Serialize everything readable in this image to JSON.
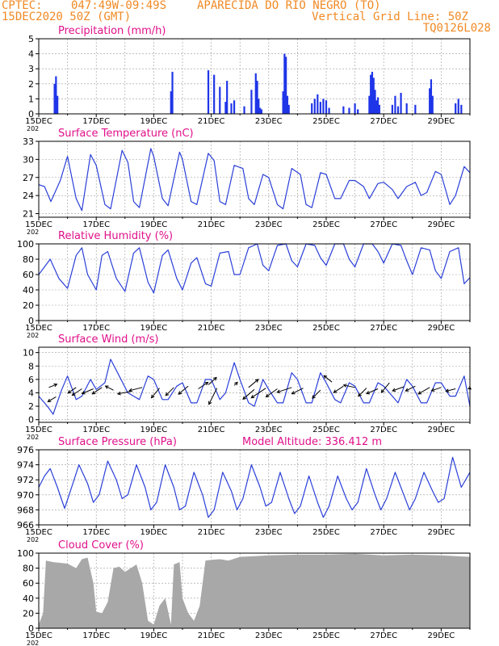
{
  "header": {
    "source": "CPTEC:",
    "coords": "047:49W-09:49S",
    "station": "APARECIDA DO RIO NEGRO (TO)",
    "datetime": "15DEC2020 50Z (GMT)",
    "grid_note": "Vertical Grid Line: 50Z",
    "model_code": "TQ0126L028"
  },
  "x_axis": {
    "start_day": 15,
    "end_day": 30,
    "ticks": [
      15,
      17,
      19,
      21,
      23,
      25,
      27,
      29
    ],
    "tick_labels": [
      "15DEC",
      "17DEC",
      "19DEC",
      "21DEC",
      "23DEC",
      "25DEC",
      "27DEC",
      "29DEC"
    ],
    "year_stub": "202"
  },
  "colors": {
    "title": "#e0108a",
    "line": "#2a3fd8",
    "bar": "#1f35e8",
    "cloud": "#a8a8a8",
    "header": "#f08a24"
  },
  "chart_data": [
    {
      "type": "bar",
      "title": "Precipitation (mm/h)",
      "ylim": [
        0,
        5
      ],
      "yticks": [
        0,
        1,
        2,
        3,
        4,
        5
      ],
      "x": [
        15.55,
        15.6,
        15.65,
        19.6,
        19.65,
        20.9,
        21.1,
        21.3,
        21.5,
        21.55,
        21.7,
        21.8,
        22.15,
        22.4,
        22.55,
        22.6,
        22.65,
        22.7,
        22.75,
        23.5,
        23.55,
        23.6,
        23.65,
        23.7,
        24.5,
        24.6,
        24.7,
        24.8,
        24.9,
        25.0,
        25.1,
        25.6,
        25.8,
        26.0,
        26.1,
        26.5,
        26.55,
        26.6,
        26.65,
        26.7,
        26.75,
        26.8,
        26.85,
        27.3,
        27.4,
        27.5,
        27.6,
        27.8,
        28.1,
        28.6,
        28.65,
        28.7,
        29.5,
        29.6,
        29.7
      ],
      "values": [
        2.0,
        2.5,
        1.2,
        1.5,
        2.8,
        2.9,
        2.6,
        1.8,
        0.8,
        2.2,
        0.7,
        0.9,
        0.5,
        1.6,
        2.7,
        2.2,
        1.0,
        0.4,
        0.3,
        1.5,
        4.0,
        3.8,
        1.2,
        0.6,
        0.7,
        1.0,
        1.3,
        0.8,
        1.0,
        0.9,
        0.4,
        0.5,
        0.4,
        0.7,
        0.3,
        1.2,
        2.6,
        2.8,
        2.4,
        1.6,
        0.9,
        1.1,
        0.6,
        0.6,
        1.2,
        0.5,
        1.4,
        0.7,
        0.6,
        1.7,
        2.3,
        1.2,
        0.7,
        1.0,
        0.6
      ]
    },
    {
      "type": "line",
      "title": "Surface Temperature (nC)",
      "ylim": [
        20.4,
        33
      ],
      "yticks": [
        21,
        24,
        27,
        30,
        33
      ],
      "x": [
        15.0,
        15.2,
        15.42,
        15.75,
        16.0,
        16.3,
        16.5,
        16.8,
        17.0,
        17.3,
        17.5,
        17.9,
        18.1,
        18.3,
        18.5,
        18.9,
        19.0,
        19.3,
        19.5,
        19.9,
        20.0,
        20.3,
        20.5,
        20.9,
        21.1,
        21.3,
        21.5,
        21.8,
        22.1,
        22.3,
        22.5,
        22.8,
        23.0,
        23.3,
        23.5,
        23.8,
        24.1,
        24.3,
        24.5,
        24.8,
        25.0,
        25.3,
        25.5,
        25.8,
        26.0,
        26.3,
        26.5,
        26.8,
        27.0,
        27.3,
        27.5,
        27.8,
        28.1,
        28.3,
        28.5,
        28.8,
        29.0,
        29.3,
        29.5,
        29.8,
        30.0
      ],
      "values": [
        25.8,
        25.5,
        23.0,
        26.5,
        30.5,
        23.5,
        21.5,
        30.8,
        29.0,
        22.5,
        21.8,
        31.5,
        29.5,
        23.0,
        22.0,
        31.8,
        30.5,
        23.5,
        22.3,
        31.2,
        30.0,
        23.0,
        22.5,
        31.0,
        29.8,
        23.0,
        22.5,
        29.0,
        28.5,
        23.5,
        22.5,
        27.5,
        27.0,
        22.5,
        21.8,
        28.5,
        27.5,
        22.5,
        22.0,
        27.8,
        27.5,
        23.5,
        23.5,
        26.5,
        26.5,
        25.5,
        23.5,
        26.0,
        26.2,
        25.0,
        23.5,
        25.5,
        26.2,
        24.0,
        24.5,
        28.0,
        27.5,
        22.5,
        24.0,
        28.8,
        27.8
      ]
    },
    {
      "type": "line",
      "title": "Relative Humidity (%)",
      "ylim": [
        0,
        100
      ],
      "yticks": [
        0,
        20,
        40,
        60,
        80,
        100
      ],
      "x": [
        15.0,
        15.2,
        15.4,
        15.7,
        16.0,
        16.3,
        16.5,
        16.7,
        17.0,
        17.2,
        17.4,
        17.7,
        18.0,
        18.3,
        18.5,
        18.8,
        19.0,
        19.3,
        19.5,
        19.8,
        20.0,
        20.3,
        20.5,
        20.8,
        21.0,
        21.3,
        21.6,
        21.8,
        22.0,
        22.3,
        22.6,
        22.8,
        23.0,
        23.3,
        23.6,
        23.8,
        24.0,
        24.3,
        24.6,
        24.8,
        25.0,
        25.3,
        25.6,
        25.8,
        26.0,
        26.3,
        26.6,
        26.8,
        27.0,
        27.3,
        27.6,
        27.8,
        28.0,
        28.3,
        28.6,
        28.8,
        29.0,
        29.3,
        29.6,
        29.8,
        30.0
      ],
      "values": [
        60,
        70,
        80,
        55,
        42,
        85,
        95,
        60,
        40,
        85,
        90,
        55,
        38,
        88,
        95,
        50,
        36,
        85,
        92,
        55,
        40,
        75,
        82,
        48,
        45,
        88,
        90,
        60,
        60,
        95,
        100,
        72,
        65,
        98,
        100,
        78,
        70,
        100,
        98,
        82,
        72,
        100,
        100,
        80,
        70,
        100,
        100,
        90,
        75,
        100,
        98,
        78,
        60,
        95,
        92,
        65,
        55,
        90,
        95,
        48,
        56
      ]
    },
    {
      "type": "line",
      "title": "Surface Wind (m/s)",
      "ylim": [
        -0.4,
        10.8
      ],
      "yticks": [
        0,
        2,
        4,
        6,
        8,
        10
      ],
      "x": [
        15.0,
        15.3,
        15.5,
        15.8,
        16.0,
        16.3,
        16.5,
        16.8,
        17.0,
        17.3,
        17.5,
        17.8,
        18.1,
        18.3,
        18.5,
        18.8,
        19.0,
        19.3,
        19.5,
        19.8,
        20.0,
        20.3,
        20.5,
        20.8,
        21.0,
        21.3,
        21.5,
        21.8,
        22.0,
        22.3,
        22.5,
        22.8,
        23.0,
        23.3,
        23.5,
        23.8,
        24.0,
        24.3,
        24.5,
        24.8,
        25.0,
        25.3,
        25.5,
        25.8,
        26.0,
        26.3,
        26.5,
        26.8,
        27.0,
        27.3,
        27.5,
        27.8,
        28.0,
        28.3,
        28.5,
        28.8,
        29.0,
        29.3,
        29.5,
        29.8,
        30.0
      ],
      "values": [
        3.5,
        2.0,
        0.8,
        4.5,
        6.5,
        3.0,
        3.5,
        6.0,
        4.5,
        5.5,
        9.0,
        6.5,
        4.0,
        3.5,
        3.0,
        6.5,
        6.0,
        3.0,
        3.0,
        5.0,
        5.5,
        2.5,
        2.5,
        6.0,
        6.0,
        3.0,
        4.0,
        8.5,
        6.0,
        2.5,
        2.0,
        6.0,
        4.5,
        2.5,
        2.5,
        7.0,
        6.0,
        2.5,
        2.5,
        7.0,
        5.5,
        3.0,
        2.5,
        5.5,
        5.0,
        2.5,
        2.5,
        5.5,
        5.0,
        3.5,
        2.5,
        6.0,
        5.0,
        2.5,
        2.5,
        5.5,
        5.5,
        3.5,
        3.5,
        6.5,
        2.0
      ],
      "arrows": [
        {
          "x": 15.35,
          "y": 4.8,
          "dx": 10,
          "dy": -4
        },
        {
          "x": 15.6,
          "y": 3.4,
          "dx": -10,
          "dy": 6
        },
        {
          "x": 16.3,
          "y": 4.8,
          "dx": -10,
          "dy": 7
        },
        {
          "x": 16.5,
          "y": 4.6,
          "dx": -12,
          "dy": 8
        },
        {
          "x": 16.9,
          "y": 4.6,
          "dx": -14,
          "dy": 6
        },
        {
          "x": 17.2,
          "y": 4.8,
          "dx": -12,
          "dy": 8
        },
        {
          "x": 17.6,
          "y": 4.4,
          "dx": -10,
          "dy": -5
        },
        {
          "x": 18.2,
          "y": 4.2,
          "dx": -16,
          "dy": 3
        },
        {
          "x": 18.6,
          "y": 4.8,
          "dx": -16,
          "dy": 4
        },
        {
          "x": 19.2,
          "y": 4.7,
          "dx": -10,
          "dy": 12
        },
        {
          "x": 19.7,
          "y": 4.8,
          "dx": -10,
          "dy": 10
        },
        {
          "x": 20.2,
          "y": 5.0,
          "dx": -12,
          "dy": 10
        },
        {
          "x": 20.55,
          "y": 4.6,
          "dx": 12,
          "dy": -8
        },
        {
          "x": 20.9,
          "y": 5.2,
          "dx": 10,
          "dy": -9
        },
        {
          "x": 21.2,
          "y": 4.7,
          "dx": -10,
          "dy": 20
        },
        {
          "x": 21.8,
          "y": 5.1,
          "dx": 4,
          "dy": -4
        },
        {
          "x": 22.3,
          "y": 4.8,
          "dx": 12,
          "dy": -10
        },
        {
          "x": 22.5,
          "y": 4.5,
          "dx": -14,
          "dy": 12
        },
        {
          "x": 22.9,
          "y": 4.7,
          "dx": -18,
          "dy": 12
        },
        {
          "x": 23.3,
          "y": 4.6,
          "dx": -14,
          "dy": 10
        },
        {
          "x": 23.8,
          "y": 4.8,
          "dx": -18,
          "dy": 6
        },
        {
          "x": 24.2,
          "y": 4.7,
          "dx": -14,
          "dy": 7
        },
        {
          "x": 24.8,
          "y": 4.4,
          "dx": -10,
          "dy": 10
        },
        {
          "x": 25.2,
          "y": 5.6,
          "dx": -10,
          "dy": -8
        },
        {
          "x": 25.6,
          "y": 5.0,
          "dx": -12,
          "dy": 8
        },
        {
          "x": 26.0,
          "y": 4.8,
          "dx": -14,
          "dy": -3
        },
        {
          "x": 26.4,
          "y": 4.7,
          "dx": -10,
          "dy": 10
        },
        {
          "x": 26.8,
          "y": 4.6,
          "dx": -14,
          "dy": 6
        },
        {
          "x": 27.2,
          "y": 5.5,
          "dx": -10,
          "dy": 12
        },
        {
          "x": 27.7,
          "y": 4.9,
          "dx": -14,
          "dy": 5
        },
        {
          "x": 28.1,
          "y": 5.0,
          "dx": -12,
          "dy": 6
        },
        {
          "x": 28.6,
          "y": 4.8,
          "dx": -14,
          "dy": 8
        },
        {
          "x": 29.0,
          "y": 4.8,
          "dx": -12,
          "dy": 4
        },
        {
          "x": 29.5,
          "y": 4.6,
          "dx": -12,
          "dy": 3
        },
        {
          "x": 29.95,
          "y": 4.8,
          "dx": 3,
          "dy": 2
        }
      ]
    },
    {
      "type": "line",
      "title": "Surface Pressure (hPa)",
      "subtitle": "Model Altitude: 336.412 m",
      "ylim": [
        966,
        976
      ],
      "yticks": [
        966,
        968,
        970,
        972,
        974,
        976
      ],
      "x": [
        15.0,
        15.2,
        15.4,
        15.65,
        15.9,
        16.1,
        16.4,
        16.7,
        16.9,
        17.1,
        17.4,
        17.7,
        17.9,
        18.1,
        18.4,
        18.7,
        18.9,
        19.1,
        19.4,
        19.7,
        19.9,
        20.1,
        20.4,
        20.7,
        20.9,
        21.1,
        21.4,
        21.7,
        21.9,
        22.1,
        22.4,
        22.7,
        22.9,
        23.1,
        23.4,
        23.7,
        23.9,
        24.1,
        24.4,
        24.7,
        24.9,
        25.1,
        25.4,
        25.7,
        25.9,
        26.1,
        26.4,
        26.7,
        26.9,
        27.1,
        27.4,
        27.7,
        27.9,
        28.1,
        28.4,
        28.7,
        28.9,
        29.1,
        29.4,
        29.7,
        30.0
      ],
      "values": [
        971.0,
        972.5,
        973.5,
        971.0,
        968.2,
        970.5,
        974.0,
        971.5,
        969.0,
        970.0,
        974.5,
        972.0,
        969.5,
        970.0,
        974.0,
        971.0,
        968.0,
        969.0,
        974.0,
        971.0,
        968.0,
        968.5,
        973.0,
        970.0,
        967.0,
        968.0,
        973.0,
        970.5,
        968.0,
        969.5,
        974.0,
        971.0,
        968.5,
        969.0,
        973.0,
        969.5,
        967.5,
        968.5,
        972.5,
        969.0,
        967.0,
        968.5,
        972.5,
        969.5,
        968.0,
        969.0,
        973.5,
        970.0,
        968.0,
        969.5,
        973.0,
        970.0,
        968.0,
        969.5,
        973.0,
        970.5,
        969.0,
        969.5,
        975.0,
        971.0,
        973.0
      ]
    },
    {
      "type": "area",
      "title": "Cloud Cover (%)",
      "ylim": [
        0,
        100
      ],
      "yticks": [
        0,
        20,
        40,
        60,
        80,
        100
      ],
      "x": [
        15.0,
        15.15,
        15.25,
        15.5,
        16.0,
        16.3,
        16.5,
        16.7,
        16.9,
        17.0,
        17.2,
        17.4,
        17.6,
        17.8,
        18.0,
        18.2,
        18.4,
        18.6,
        18.8,
        19.0,
        19.2,
        19.4,
        19.6,
        19.7,
        19.9,
        20.0,
        20.2,
        20.4,
        20.6,
        20.8,
        21.0,
        21.3,
        21.6,
        22.0,
        22.5,
        23.0,
        24.0,
        25.0,
        26.0,
        27.0,
        28.0,
        29.0,
        30.0
      ],
      "values": [
        5,
        20,
        90,
        88,
        86,
        80,
        92,
        94,
        60,
        22,
        20,
        35,
        80,
        82,
        75,
        80,
        85,
        60,
        10,
        5,
        30,
        40,
        5,
        85,
        88,
        40,
        20,
        10,
        30,
        90,
        91,
        92,
        90,
        95,
        96,
        97,
        98,
        98,
        99,
        97,
        98,
        97,
        95
      ]
    }
  ]
}
